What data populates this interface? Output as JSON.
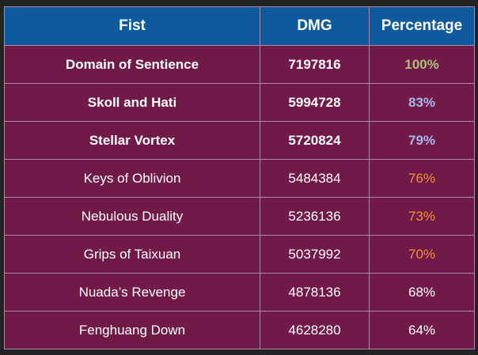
{
  "table": {
    "headers": [
      "Fist",
      "DMG",
      "Percentage"
    ],
    "rows": [
      {
        "fist": "Domain of Sentience",
        "dmg": "7197816",
        "pct": "100%",
        "pct_color": "#a9c277",
        "bold": true
      },
      {
        "fist": "Skoll and Hati",
        "dmg": "5994728",
        "pct": "83%",
        "pct_color": "#a9b7ee",
        "bold": true
      },
      {
        "fist": "Stellar Vortex",
        "dmg": "5720824",
        "pct": "79%",
        "pct_color": "#a9b7ee",
        "bold": true
      },
      {
        "fist": "Keys of Oblivion",
        "dmg": "5484384",
        "pct": "76%",
        "pct_color": "#f2913a",
        "bold": false
      },
      {
        "fist": "Nebulous Duality",
        "dmg": "5236136",
        "pct": "73%",
        "pct_color": "#f2913a",
        "bold": false
      },
      {
        "fist": "Grips of Taixuan",
        "dmg": "5037992",
        "pct": "70%",
        "pct_color": "#f2913a",
        "bold": false
      },
      {
        "fist": "Nuada’s Revenge",
        "dmg": "4878136",
        "pct": "68%",
        "pct_color": "#ffffff",
        "bold": false
      },
      {
        "fist": "Fenghuang Down",
        "dmg": "4628280",
        "pct": "64%",
        "pct_color": "#ffffff",
        "bold": false
      }
    ]
  },
  "colors": {
    "background": "#232323",
    "header": "#0f5a9c",
    "row": "#721a47",
    "border": "#a98aa8"
  }
}
